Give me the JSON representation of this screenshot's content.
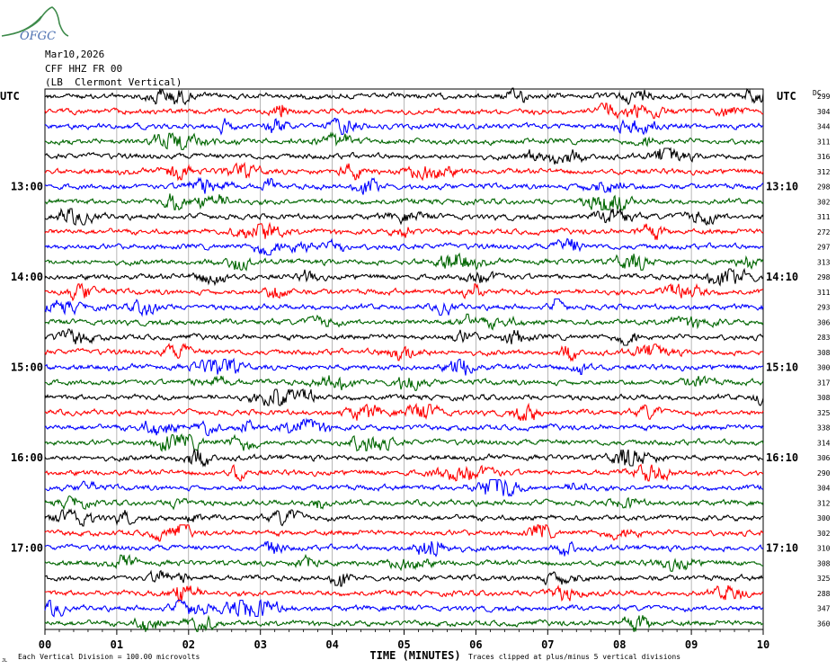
{
  "logo": {
    "text": "OFGC",
    "color": "#3d8a4a",
    "text_color": "#4a6fb0"
  },
  "header": {
    "date": "Mar10,2026",
    "station": "CFF HHZ FR 00",
    "location": "(LB  Clermont Vertical)"
  },
  "left_utc": "UTC",
  "right_utc": "UTC",
  "right_col_title": "DC",
  "footer": {
    "xlabel": "TIME (MINUTES)",
    "scale_note": "Each Vertical Division =  100.00 microvolts",
    "clip_note": "Traces clipped at plus/minus 5 vertical divisions",
    "corner_mark": "JL"
  },
  "chart_data": {
    "type": "line",
    "title": "",
    "xlabel": "TIME (MINUTES)",
    "xlim": [
      0,
      10
    ],
    "x_ticks": [
      "00",
      "01",
      "02",
      "03",
      "04",
      "05",
      "06",
      "07",
      "08",
      "09",
      "10"
    ],
    "trace_colors": [
      "#000000",
      "#ff0000",
      "#0000ff",
      "#006600"
    ],
    "left_hour_labels": [
      {
        "trace": 6,
        "text": "13:00"
      },
      {
        "trace": 12,
        "text": "14:00"
      },
      {
        "trace": 18,
        "text": "15:00"
      },
      {
        "trace": 24,
        "text": "16:00"
      },
      {
        "trace": 30,
        "text": "17:00"
      }
    ],
    "right_hour_labels": [
      {
        "trace": 6,
        "text": "13:10"
      },
      {
        "trace": 12,
        "text": "14:10"
      },
      {
        "trace": 18,
        "text": "15:10"
      },
      {
        "trace": 24,
        "text": "16:10"
      },
      {
        "trace": 30,
        "text": "17:10"
      }
    ],
    "dc_offsets": [
      "299",
      "304",
      "344",
      "311",
      "316",
      "312",
      "298",
      "302",
      "311",
      "272",
      "297",
      "313",
      "298",
      "311",
      "293",
      "306",
      "283",
      "308",
      "300",
      "317",
      "308",
      "325",
      "338",
      "314",
      "306",
      "290",
      "304",
      "312",
      "300",
      "302",
      "310",
      "308",
      "325",
      "288",
      "347",
      "360"
    ]
  }
}
